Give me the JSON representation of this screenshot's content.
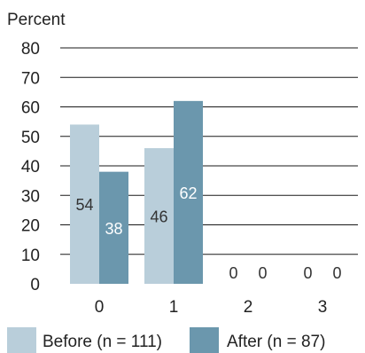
{
  "chart_data": {
    "type": "bar",
    "ylabel": "Percent",
    "ylim": [
      0,
      80
    ],
    "yticks": [
      0,
      10,
      20,
      30,
      40,
      50,
      60,
      70,
      80
    ],
    "categories": [
      "0",
      "1",
      "2",
      "3"
    ],
    "series": [
      {
        "name": "Before (n = 111)",
        "values": [
          54,
          46,
          0,
          0
        ],
        "color": "#b9ceda",
        "label_color": "#333333"
      },
      {
        "name": "After (n = 87)",
        "values": [
          38,
          62,
          0,
          0
        ],
        "color": "#6b97ad",
        "label_color": "#ffffff"
      }
    ],
    "grid": true,
    "legend": "bottom"
  }
}
